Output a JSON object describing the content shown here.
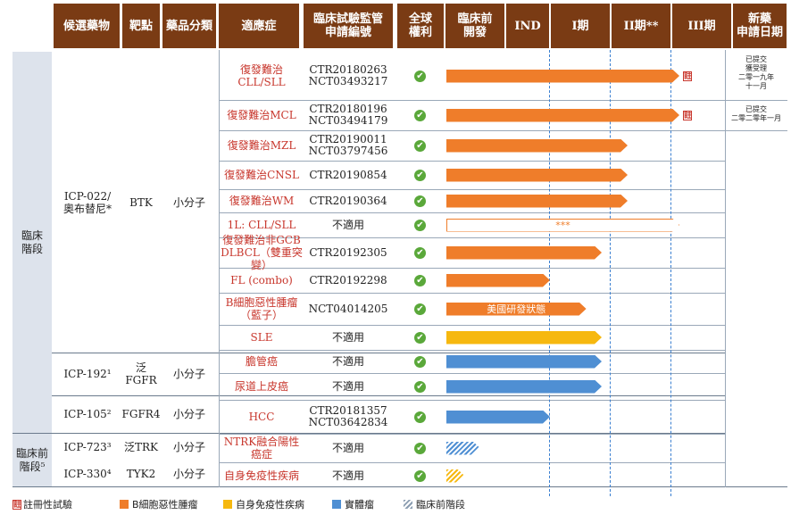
{
  "headers": [
    "候選藥物",
    "靶點",
    "藥品分類",
    "適應症",
    "臨床試驗監管\n申請編號",
    "全球\n權利",
    "臨床前\n開發",
    "IND",
    "I期",
    "II期**",
    "III期",
    "新藥\n申請日期"
  ],
  "groups": [
    "臨床\n階段",
    "臨床前\n階段⁵"
  ],
  "drugs": [
    {
      "name": "ICP-022/\n奧布替尼*",
      "target": "BTK",
      "cls": "小分子"
    },
    {
      "name": "ICP-192¹",
      "target": "泛FGFR",
      "cls": "小分子"
    },
    {
      "name": "ICP-105²",
      "target": "FGFR4",
      "cls": "小分子"
    },
    {
      "name": "ICP-723³",
      "target": "泛TRK",
      "cls": "小分子"
    },
    {
      "name": "ICP-330⁴",
      "target": "TYK2",
      "cls": "小分子"
    }
  ],
  "rows": [
    {
      "ind": "復發難治CLL/SLL",
      "ctr": "CTR20180263\nNCT03493217",
      "check": "✔",
      "phase": "II期**",
      "type": "heme",
      "stage": 4.5,
      "reg": true
    },
    {
      "ind": "復發難治MCL",
      "ctr": "CTR20180196\nNCT03494179",
      "check": "✔",
      "phase": "II期**",
      "type": "heme",
      "stage": 4.5,
      "reg": true
    },
    {
      "ind": "復發難治MZL",
      "ctr": "CTR20190011\nNCT03797456",
      "check": "✔",
      "phase": "II期**",
      "type": "heme",
      "stage": 3.5
    },
    {
      "ind": "復發難治CNSL",
      "ctr": "CTR20190854",
      "check": "✔",
      "phase": "II期**",
      "type": "heme",
      "stage": 3.5
    },
    {
      "ind": "復發難治WM",
      "ctr": "CTR20190364",
      "check": "✔",
      "phase": "II期**",
      "type": "heme",
      "stage": 3.5
    },
    {
      "ind": "1L: CLL/SLL",
      "ctr": "不適用",
      "check": "✔",
      "phase": "III期",
      "type": "outline",
      "stage": 4.5,
      "label": "***"
    },
    {
      "ind": "復發難治非GCB\nDLBCL（雙重突變）",
      "ctr": "CTR20192305",
      "check": "✔",
      "phase": "II期**",
      "type": "heme",
      "stage": 3
    },
    {
      "ind": "FL (combo)",
      "ctr": "CTR20192298",
      "check": "✔",
      "phase": "I期",
      "type": "heme",
      "stage": 2
    },
    {
      "ind": "B細胞惡性腫瘤\n（藍子）",
      "ctr": "NCT04014205",
      "check": "✔",
      "phase": "I期",
      "type": "heme",
      "stage": 2.7,
      "label": "美國研發狀態"
    },
    {
      "ind": "SLE",
      "ctr": "不適用",
      "check": "✔",
      "phase": "II期**",
      "type": "auto",
      "stage": 3
    },
    {
      "ind": "膽管癌",
      "ctr": "不適用",
      "check": "✔",
      "phase": "II期**",
      "type": "solid",
      "stage": 3
    },
    {
      "ind": "尿道上皮癌",
      "ctr": "不適用",
      "check": "✔",
      "phase": "II期**",
      "type": "solid",
      "stage": 3
    },
    {
      "ind": "HCC",
      "ctr": "CTR20181357\nNCT03642834",
      "check": "✔",
      "phase": "I期",
      "type": "solid",
      "stage": 2
    },
    {
      "ind": "NTRK融合陽性癌症",
      "ctr": "不適用",
      "check": "✔",
      "phase": "臨床前開發",
      "type": "pre-blue",
      "stage": 0.65
    },
    {
      "ind": "自身免疫性疾病",
      "ctr": "不適用",
      "check": "✔",
      "phase": "臨床前開發",
      "type": "pre-yellow",
      "stage": 0.35
    }
  ],
  "nda": [
    "已提交\n獲受理\n二零一九年\n十一月",
    "已提交\n二零二零年一月"
  ],
  "reg_mark": "註",
  "legend": [
    "註冊性試驗",
    "B細胞惡性腫瘤",
    "自身免疫性疾病",
    "實體瘤",
    "臨床前階段"
  ],
  "colors": {
    "header": "#7a3b14",
    "heme": "#ef7d2a",
    "auto": "#f6b80f",
    "solid": "#4f8fd3",
    "pre": "#8a9cb0"
  }
}
